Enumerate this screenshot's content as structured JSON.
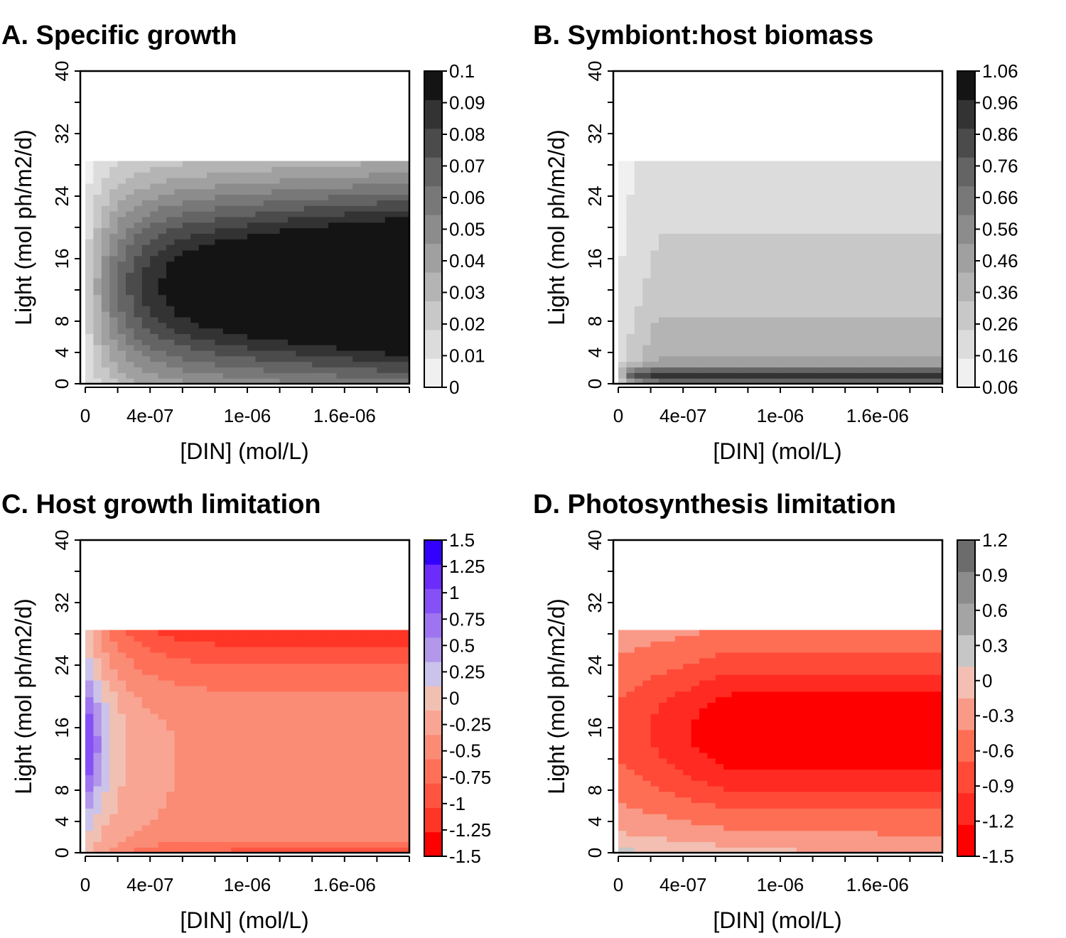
{
  "chart_data": [
    {
      "id": "A",
      "type": "heatmap",
      "title": "A. Specific growth",
      "xlabel": "[DIN] (mol/L)",
      "ylabel": "Light (mol ph/m2/d)",
      "xlim": [
        0,
        2e-06
      ],
      "ylim": [
        0,
        40
      ],
      "x_ticks": [
        "0",
        "4e-07",
        "1e-06",
        "1.6e-06"
      ],
      "y_ticks": [
        "0",
        "4",
        "8",
        "16",
        "24",
        "32",
        "40"
      ],
      "colorbar": {
        "labels": [
          "0",
          "0.01",
          "0.02",
          "0.03",
          "0.04",
          "0.05",
          "0.06",
          "0.07",
          "0.08",
          "0.09",
          "0.1"
        ],
        "colors": [
          "#f0f0f0",
          "#dcdcdc",
          "#c8c8c8",
          "#b4b4b4",
          "#a0a0a0",
          "#8c8c8c",
          "#787878",
          "#646464",
          "#4b4b4b",
          "#333333",
          "#141414"
        ]
      },
      "contour_levels": [
        0.01,
        0.02,
        0.03,
        0.04,
        0.05,
        0.06,
        0.07,
        0.08,
        0.09
      ]
    },
    {
      "id": "B",
      "type": "heatmap",
      "title": "B. Symbiont:host biomass",
      "xlabel": "[DIN] (mol/L)",
      "ylabel": "Light (mol ph/m2/d)",
      "xlim": [
        0,
        2e-06
      ],
      "ylim": [
        0,
        40
      ],
      "x_ticks": [
        "0",
        "4e-07",
        "1e-06",
        "1.6e-06"
      ],
      "y_ticks": [
        "0",
        "4",
        "8",
        "16",
        "24",
        "32",
        "40"
      ],
      "colorbar": {
        "labels": [
          "0.06",
          "0.16",
          "0.26",
          "0.36",
          "0.46",
          "0.56",
          "0.66",
          "0.76",
          "0.86",
          "0.96",
          "1.06"
        ],
        "colors": [
          "#f0f0f0",
          "#dcdcdc",
          "#c8c8c8",
          "#b4b4b4",
          "#a0a0a0",
          "#8c8c8c",
          "#787878",
          "#646464",
          "#4b4b4b",
          "#333333",
          "#141414"
        ]
      }
    },
    {
      "id": "C",
      "type": "heatmap",
      "title": "C. Host growth limitation",
      "xlabel": "[DIN] (mol/L)",
      "ylabel": "Light (mol ph/m2/d)",
      "xlim": [
        0,
        2e-06
      ],
      "ylim": [
        0,
        40
      ],
      "x_ticks": [
        "0",
        "4e-07",
        "1e-06",
        "1.6e-06"
      ],
      "y_ticks": [
        "0",
        "4",
        "8",
        "16",
        "24",
        "32",
        "40"
      ],
      "colorbar": {
        "labels": [
          "-1.5",
          "-1.25",
          "-1",
          "-0.75",
          "-0.5",
          "-0.25",
          "0",
          "0.25",
          "0.5",
          "0.75",
          "1",
          "1.25",
          "1.5"
        ],
        "colors": [
          "#ff0000",
          "#ff3526",
          "#ff5540",
          "#ff7058",
          "#fa8c76",
          "#f9a593",
          "#f0c0b3",
          "#cbc3ea",
          "#b397ea",
          "#9e74f0",
          "#8550f6",
          "#6c2cfb",
          "#3300ff"
        ]
      }
    },
    {
      "id": "D",
      "type": "heatmap",
      "title": "D. Photosynthesis limitation",
      "xlabel": "[DIN] (mol/L)",
      "ylabel": "Light (mol ph/m2/d)",
      "xlim": [
        0,
        2e-06
      ],
      "ylim": [
        0,
        40
      ],
      "x_ticks": [
        "0",
        "4e-07",
        "1e-06",
        "1.6e-06"
      ],
      "y_ticks": [
        "0",
        "4",
        "8",
        "16",
        "24",
        "32",
        "40"
      ],
      "colorbar": {
        "labels": [
          "-1.5",
          "-1.2",
          "-0.9",
          "-0.6",
          "-0.3",
          "0",
          "0.3",
          "0.6",
          "0.9",
          "1.2"
        ],
        "colors": [
          "#ff0000",
          "#ff2a22",
          "#ff4a38",
          "#fe6e55",
          "#f89a87",
          "#f2bfb2",
          "#c6c6c6",
          "#a4a4a4",
          "#8c8c8c",
          "#6c6c6c"
        ]
      }
    }
  ]
}
